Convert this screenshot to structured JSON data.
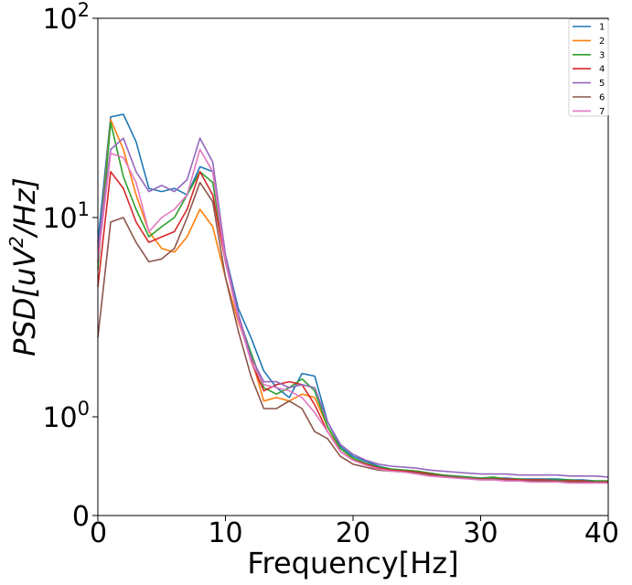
{
  "chart_data": {
    "type": "line",
    "title": "",
    "xlabel": "Frequency[Hz]",
    "ylabel_base": "PSD[uV",
    "ylabel_sup": "2",
    "ylabel_tail": "/Hz]",
    "xlim": [
      0,
      40
    ],
    "ylim": [
      0,
      100
    ],
    "yscale": "symlog",
    "y_linear_threshold": 1,
    "grid": false,
    "legend_position": "top-right",
    "x_ticks": [
      {
        "value": 0,
        "label": "0"
      },
      {
        "value": 10,
        "label": "10"
      },
      {
        "value": 20,
        "label": "20"
      },
      {
        "value": 30,
        "label": "30"
      },
      {
        "value": 40,
        "label": "40"
      }
    ],
    "y_ticks": [
      {
        "value": 0,
        "base": "0",
        "exp": ""
      },
      {
        "value": 1,
        "base": "10",
        "exp": "0"
      },
      {
        "value": 10,
        "base": "10",
        "exp": "1"
      },
      {
        "value": 100,
        "base": "10",
        "exp": "2"
      }
    ],
    "x": [
      0,
      1,
      2,
      3,
      4,
      5,
      6,
      7,
      8,
      9,
      10,
      11,
      12,
      13,
      14,
      15,
      16,
      17,
      18,
      19,
      20,
      21,
      22,
      23,
      24,
      25,
      26,
      27,
      28,
      29,
      30,
      31,
      32,
      33,
      34,
      35,
      36,
      37,
      38,
      39,
      40
    ],
    "series": [
      {
        "name": "1",
        "color": "#1f77b4",
        "values": [
          7.5,
          32,
          33,
          24,
          14,
          13.5,
          14,
          13,
          18,
          17,
          6.5,
          3.5,
          2.5,
          1.7,
          1.4,
          1.25,
          1.65,
          1.6,
          0.95,
          0.7,
          0.6,
          0.55,
          0.5,
          0.47,
          0.46,
          0.45,
          0.43,
          0.41,
          0.4,
          0.39,
          0.38,
          0.38,
          0.38,
          0.37,
          0.37,
          0.37,
          0.37,
          0.36,
          0.36,
          0.35,
          0.35
        ]
      },
      {
        "name": "2",
        "color": "#ff7f0e",
        "values": [
          6,
          31,
          22,
          13,
          8.5,
          7,
          6.7,
          8,
          11,
          9,
          5,
          3,
          2,
          1.2,
          1.25,
          1.2,
          1.3,
          1.25,
          0.9,
          0.65,
          0.57,
          0.52,
          0.48,
          0.46,
          0.44,
          0.43,
          0.41,
          0.4,
          0.39,
          0.38,
          0.37,
          0.37,
          0.36,
          0.36,
          0.35,
          0.35,
          0.35,
          0.35,
          0.34,
          0.34,
          0.34
        ]
      },
      {
        "name": "3",
        "color": "#2ca02c",
        "values": [
          5.5,
          30,
          16,
          11,
          8,
          9,
          10,
          13,
          17,
          15,
          6,
          3.2,
          2.1,
          1.4,
          1.3,
          1.4,
          1.55,
          1.35,
          0.9,
          0.68,
          0.58,
          0.53,
          0.49,
          0.47,
          0.46,
          0.45,
          0.43,
          0.41,
          0.4,
          0.39,
          0.38,
          0.39,
          0.37,
          0.37,
          0.36,
          0.36,
          0.36,
          0.36,
          0.35,
          0.35,
          0.35
        ]
      },
      {
        "name": "4",
        "color": "#d62728",
        "values": [
          4.5,
          17,
          14,
          9.5,
          7.5,
          8,
          8.5,
          11,
          17,
          13,
          6,
          3.2,
          1.9,
          1.35,
          1.45,
          1.5,
          1.45,
          1.15,
          0.85,
          0.65,
          0.56,
          0.52,
          0.48,
          0.46,
          0.45,
          0.44,
          0.42,
          0.4,
          0.39,
          0.38,
          0.37,
          0.37,
          0.37,
          0.36,
          0.36,
          0.36,
          0.35,
          0.35,
          0.35,
          0.34,
          0.34
        ]
      },
      {
        "name": "5",
        "color": "#9467bd",
        "values": [
          7,
          22,
          25,
          17,
          13.5,
          14.5,
          13.5,
          15.5,
          25,
          19,
          6.5,
          3.3,
          2,
          1.5,
          1.5,
          1.4,
          1.45,
          1.4,
          0.95,
          0.72,
          0.62,
          0.56,
          0.52,
          0.5,
          0.49,
          0.48,
          0.46,
          0.45,
          0.44,
          0.43,
          0.42,
          0.42,
          0.42,
          0.41,
          0.41,
          0.41,
          0.41,
          0.4,
          0.4,
          0.4,
          0.39
        ]
      },
      {
        "name": "6",
        "color": "#8c564b",
        "values": [
          2.5,
          9.5,
          10,
          7.5,
          6,
          6.2,
          7,
          10,
          15,
          12,
          5,
          2.7,
          1.6,
          1.1,
          1.1,
          1.2,
          1.1,
          0.85,
          0.78,
          0.6,
          0.52,
          0.49,
          0.46,
          0.45,
          0.44,
          0.43,
          0.41,
          0.4,
          0.39,
          0.38,
          0.37,
          0.37,
          0.36,
          0.35,
          0.35,
          0.35,
          0.35,
          0.34,
          0.34,
          0.34,
          0.33
        ]
      },
      {
        "name": "7",
        "color": "#e377c2",
        "values": [
          6,
          21,
          20,
          15,
          8.5,
          10,
          11,
          13,
          22,
          17,
          6,
          3.1,
          1.9,
          1.45,
          1.4,
          1.35,
          1.25,
          1.05,
          0.85,
          0.65,
          0.56,
          0.51,
          0.47,
          0.45,
          0.44,
          0.42,
          0.4,
          0.39,
          0.38,
          0.37,
          0.36,
          0.36,
          0.35,
          0.35,
          0.34,
          0.34,
          0.34,
          0.33,
          0.33,
          0.33,
          0.33
        ]
      }
    ]
  }
}
